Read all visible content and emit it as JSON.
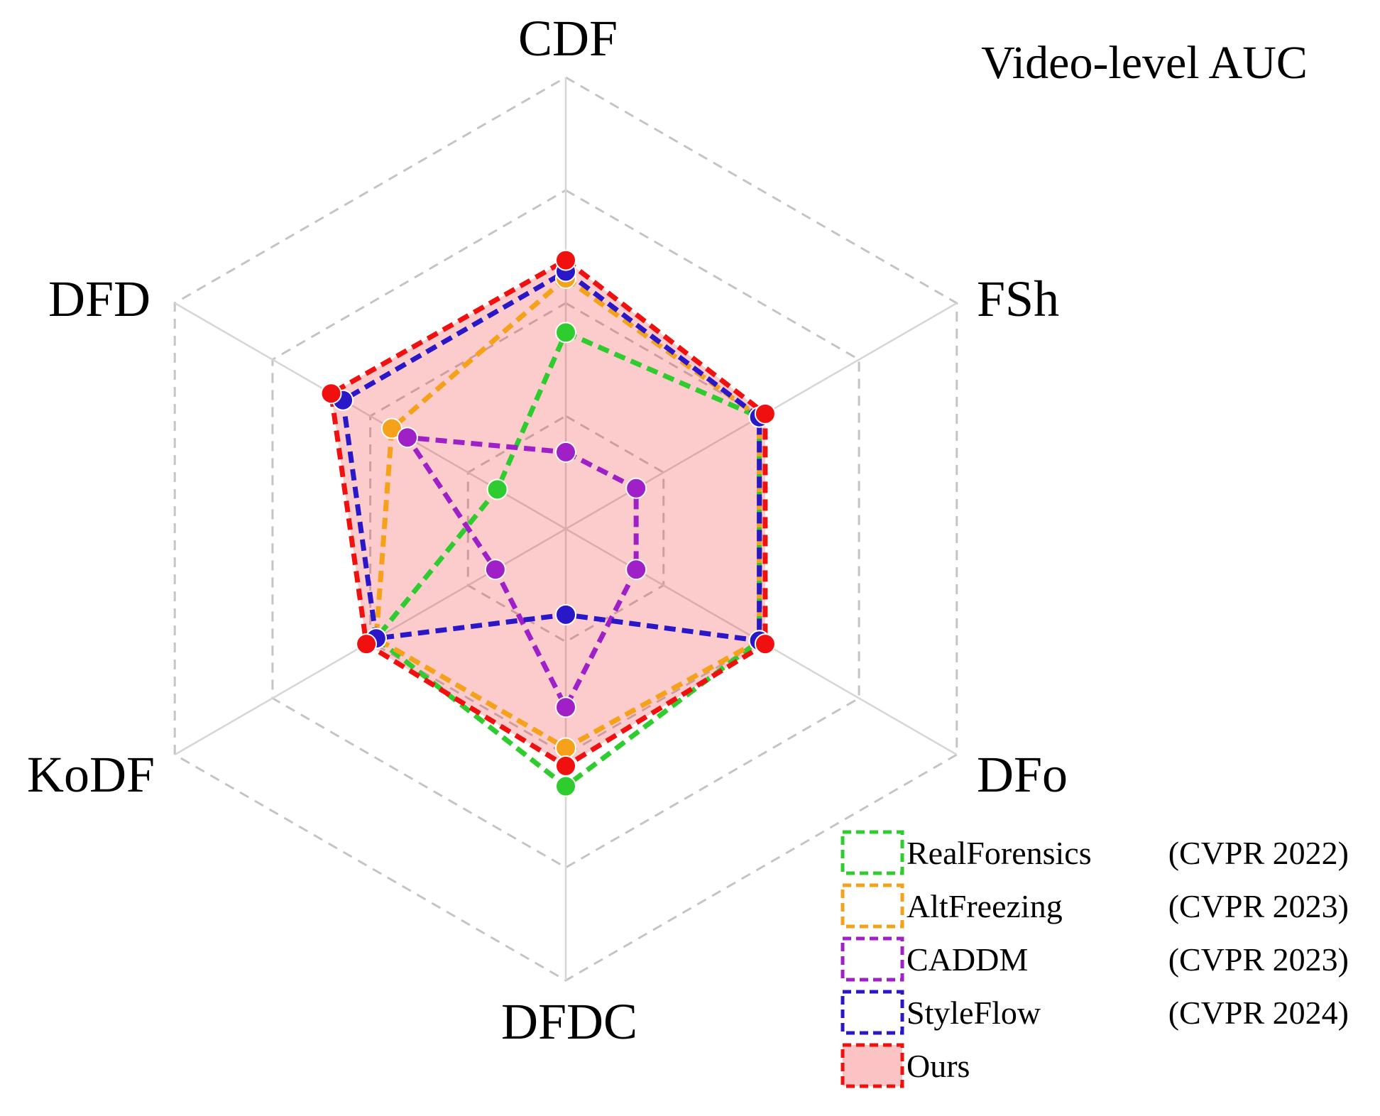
{
  "chart_data": {
    "type": "radar",
    "title": "Video-level AUC",
    "axes": [
      "CDF",
      "FSh",
      "DFo",
      "DFDC",
      "KoDF",
      "DFD"
    ],
    "rings": 4,
    "legend_position": "bottom-right",
    "series": [
      {
        "name": "RealForensics",
        "venue": "(CVPR 2022)",
        "color": "#2ecc2e",
        "values": [
          0.87,
          0.99,
          0.99,
          1.14,
          0.97,
          0.35
        ],
        "filled": false
      },
      {
        "name": "AltFreezing",
        "venue": "(CVPR 2023)",
        "color": "#f5a21a",
        "values": [
          1.11,
          0.99,
          0.99,
          0.97,
          0.97,
          0.89
        ],
        "filled": false
      },
      {
        "name": "CADDM",
        "venue": "(CVPR 2023)",
        "color": "#a020c8",
        "values": [
          0.34,
          0.36,
          0.36,
          0.79,
          0.36,
          0.81
        ],
        "filled": false
      },
      {
        "name": "StyleFlow",
        "venue": "(CVPR 2024)",
        "color": "#2a18c8",
        "values": [
          1.14,
          0.99,
          0.99,
          0.38,
          0.97,
          1.14
        ],
        "filled": false
      },
      {
        "name": "Ours",
        "venue": "",
        "color": "#f01010",
        "values": [
          1.19,
          1.02,
          1.02,
          1.05,
          1.02,
          1.2
        ],
        "filled": true
      }
    ]
  }
}
